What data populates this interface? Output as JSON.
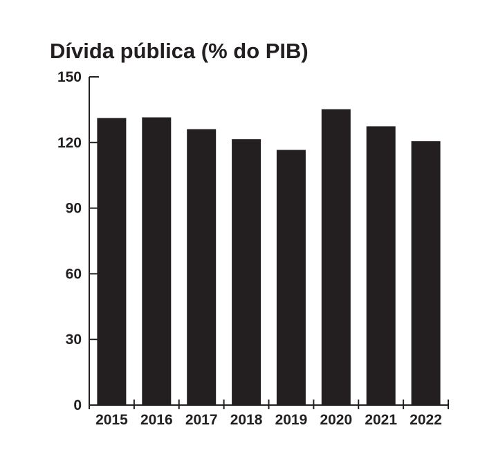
{
  "chart_data": {
    "type": "bar",
    "title": "Dívida pública (% do PIB)",
    "categories": [
      "2015",
      "2016",
      "2017",
      "2018",
      "2019",
      "2020",
      "2021",
      "2022"
    ],
    "values": [
      131.2,
      131.5,
      126.1,
      121.5,
      116.6,
      135.2,
      127.4,
      120.6
    ],
    "ylim": [
      0,
      150
    ],
    "yticks": [
      0,
      30,
      60,
      90,
      120,
      150
    ],
    "xlabel": "",
    "ylabel": "",
    "grid": false,
    "colors": {
      "bar": "#231f20",
      "axis": "#231f20",
      "text": "#231f20",
      "background": "#ffffff"
    }
  }
}
